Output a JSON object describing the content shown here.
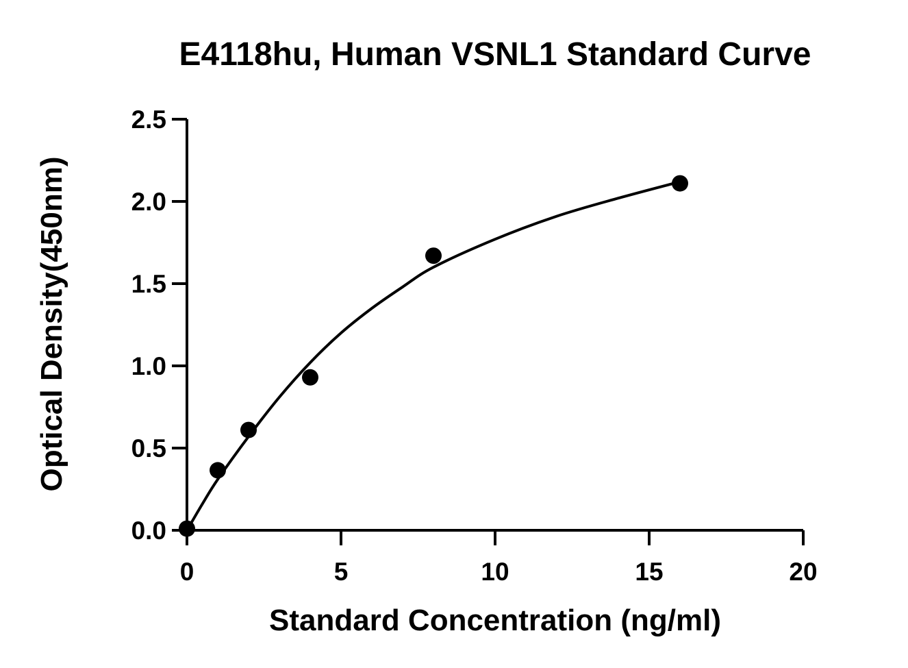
{
  "chart_data": {
    "type": "scatter",
    "title": "E4118hu, Human VSNL1 Standard Curve",
    "xlabel": "Standard Concentration (ng/ml)",
    "ylabel": "Optical Density(450nm)",
    "xlim": [
      0,
      20
    ],
    "ylim": [
      0,
      2.5
    ],
    "xticks": [
      "0",
      "5",
      "10",
      "15",
      "20"
    ],
    "yticks": [
      "0.0",
      "0.5",
      "1.0",
      "1.5",
      "2.0",
      "2.5"
    ],
    "grid": false,
    "series": [
      {
        "x": [
          0,
          1,
          2,
          4,
          8,
          16
        ],
        "y": [
          0.01,
          0.365,
          0.61,
          0.93,
          1.67,
          2.11
        ]
      }
    ],
    "fit_curve": {
      "x": [
        0,
        0.5,
        1,
        2,
        3,
        4,
        5,
        6,
        7,
        8,
        10,
        12,
        14,
        16
      ],
      "y": [
        0.0,
        0.16,
        0.31,
        0.57,
        0.81,
        1.02,
        1.2,
        1.35,
        1.48,
        1.6,
        1.77,
        1.91,
        2.02,
        2.12
      ]
    },
    "colors": {
      "marker": "#000000",
      "line": "#000000",
      "axis": "#000000"
    }
  }
}
